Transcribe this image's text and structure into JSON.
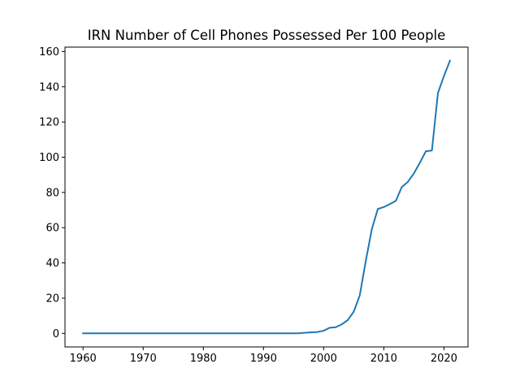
{
  "chart_data": {
    "type": "line",
    "title": "IRN Number of Cell Phones Possessed Per 100 People",
    "xlabel": "",
    "ylabel": "",
    "xlim": [
      1957,
      2024
    ],
    "ylim": [
      -7.7,
      162.5
    ],
    "xticks": [
      1960,
      1970,
      1980,
      1990,
      2000,
      2010,
      2020
    ],
    "yticks": [
      0,
      20,
      40,
      60,
      80,
      100,
      120,
      140,
      160
    ],
    "grid": false,
    "line_color": "#1f77b4",
    "series": [
      {
        "x": [
          1960,
          1961,
          1962,
          1963,
          1964,
          1965,
          1966,
          1967,
          1968,
          1969,
          1970,
          1971,
          1972,
          1973,
          1974,
          1975,
          1976,
          1977,
          1978,
          1979,
          1980,
          1981,
          1982,
          1983,
          1984,
          1985,
          1986,
          1987,
          1988,
          1989,
          1990,
          1991,
          1992,
          1993,
          1994,
          1995,
          1996,
          1997,
          1998,
          1999,
          2000,
          2001,
          2002,
          2003,
          2004,
          2005,
          2006,
          2007,
          2008,
          2009,
          2010,
          2011,
          2012,
          2013,
          2014,
          2015,
          2016,
          2017,
          2018,
          2019,
          2020,
          2021
        ],
        "values": [
          0,
          0,
          0,
          0,
          0,
          0,
          0,
          0,
          0,
          0,
          0,
          0,
          0,
          0,
          0,
          0,
          0,
          0,
          0,
          0,
          0,
          0,
          0,
          0,
          0,
          0,
          0,
          0,
          0,
          0,
          0,
          0,
          0,
          0,
          0,
          0,
          0.1,
          0.4,
          0.6,
          0.8,
          1.5,
          3.2,
          3.5,
          5.1,
          7.5,
          12.3,
          21.5,
          41,
          59,
          70.6,
          71.7,
          73.4,
          75.2,
          83.1,
          86,
          90.8,
          96.9,
          103.4,
          103.8,
          136.4,
          146.1,
          154.8
        ]
      }
    ]
  }
}
